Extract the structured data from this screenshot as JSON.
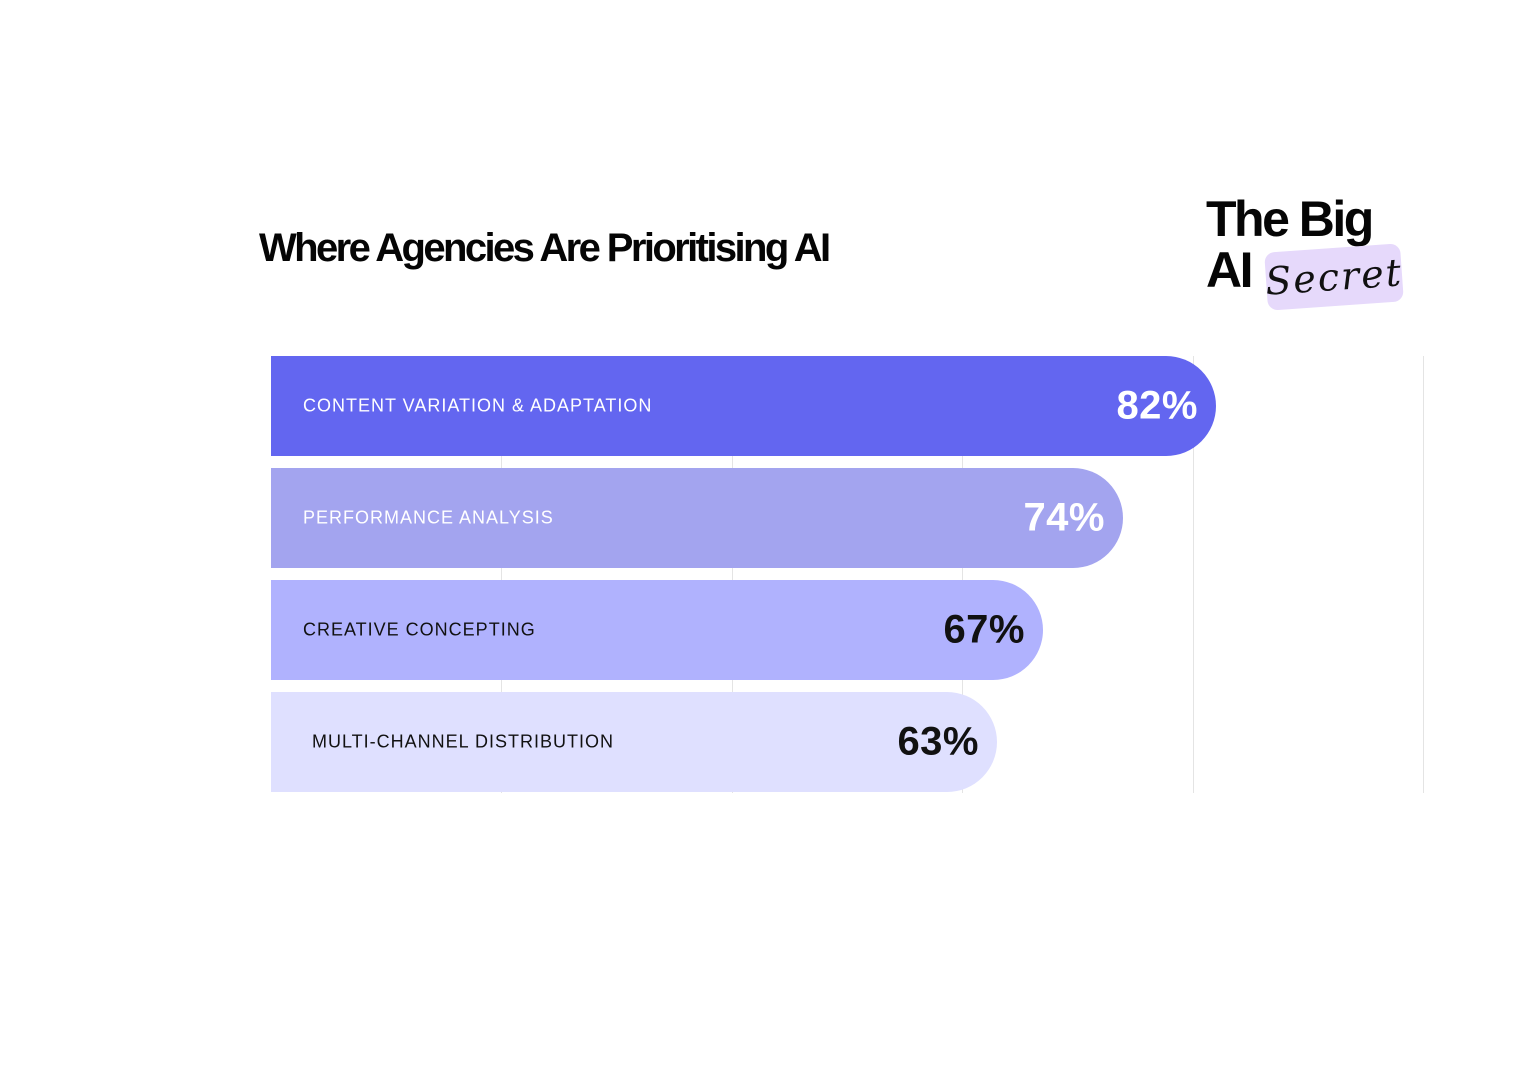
{
  "chart_data": {
    "type": "bar",
    "orientation": "horizontal",
    "title": "Where Agencies Are Prioritising AI",
    "categories": [
      "CONTENT VARIATION & ADAPTATION",
      "PERFORMANCE ANALYSIS",
      "CREATIVE CONCEPTING",
      "MULTI-CHANNEL DISTRIBUTION"
    ],
    "values": [
      82,
      74,
      67,
      63
    ],
    "value_labels": [
      "82%",
      "74%",
      "67%",
      "63%"
    ],
    "xlim": [
      0,
      100
    ],
    "grid": true,
    "bar_colors": [
      "#6366f0",
      "#a3a4ef",
      "#b0b2fe",
      "#dfe0ff"
    ],
    "label_colors": [
      "#ffffff",
      "#ffffff",
      "#111111",
      "#111111"
    ]
  },
  "brand": {
    "line1": "The Big",
    "line2": "AI",
    "tag": "Secret",
    "tag_color": "#e6d9fb"
  }
}
